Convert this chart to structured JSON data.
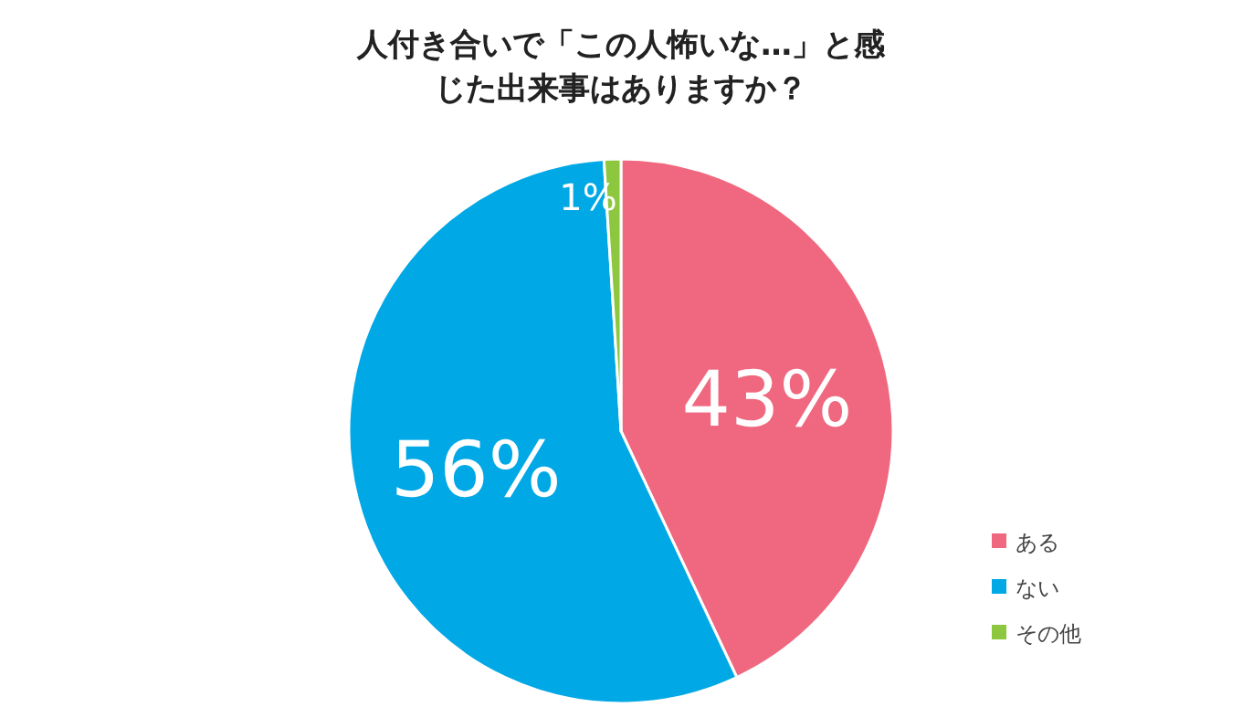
{
  "chart_data": {
    "type": "pie",
    "title": "人付き合いで「この人怖いな…」と感じた出来事はありますか？",
    "categories": [
      "ある",
      "ない",
      "その他"
    ],
    "values": [
      43,
      56,
      1
    ],
    "value_labels": [
      "43%",
      "56%",
      "1%"
    ],
    "colors": [
      "#f0687f",
      "#00a8e6",
      "#8dc63f"
    ],
    "legend": "bottom right"
  }
}
